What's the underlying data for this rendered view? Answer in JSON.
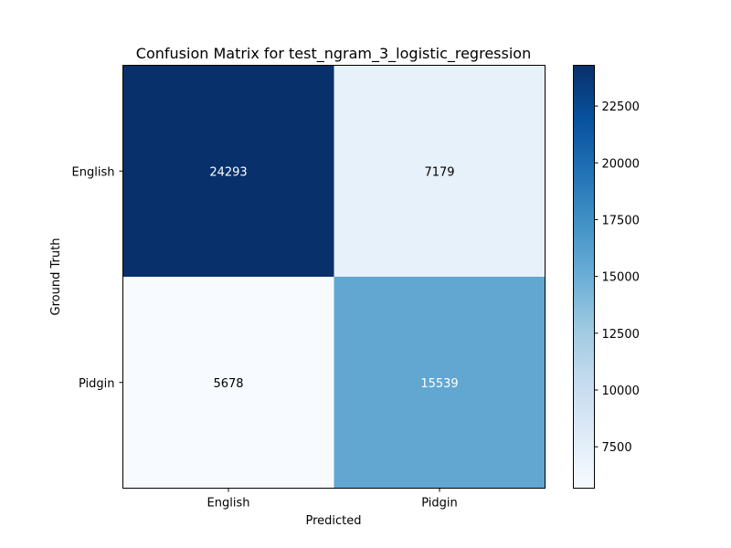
{
  "chart_data": {
    "type": "heatmap",
    "title": "Confusion Matrix for test_ngram_3_logistic_regression",
    "xlabel": "Predicted",
    "ylabel": "Ground Truth",
    "x_categories": [
      "English",
      "Pidgin"
    ],
    "y_categories": [
      "English",
      "Pidgin"
    ],
    "values": [
      [
        24293,
        7179
      ],
      [
        5678,
        15539
      ]
    ],
    "colormap": "Blues",
    "colorbar": {
      "range": [
        5678,
        24293
      ],
      "ticks": [
        7500,
        10000,
        12500,
        15000,
        17500,
        20000,
        22500
      ]
    },
    "text_colors": {
      "dark_cell": "#ffffff",
      "light_cell": "#000000"
    }
  }
}
